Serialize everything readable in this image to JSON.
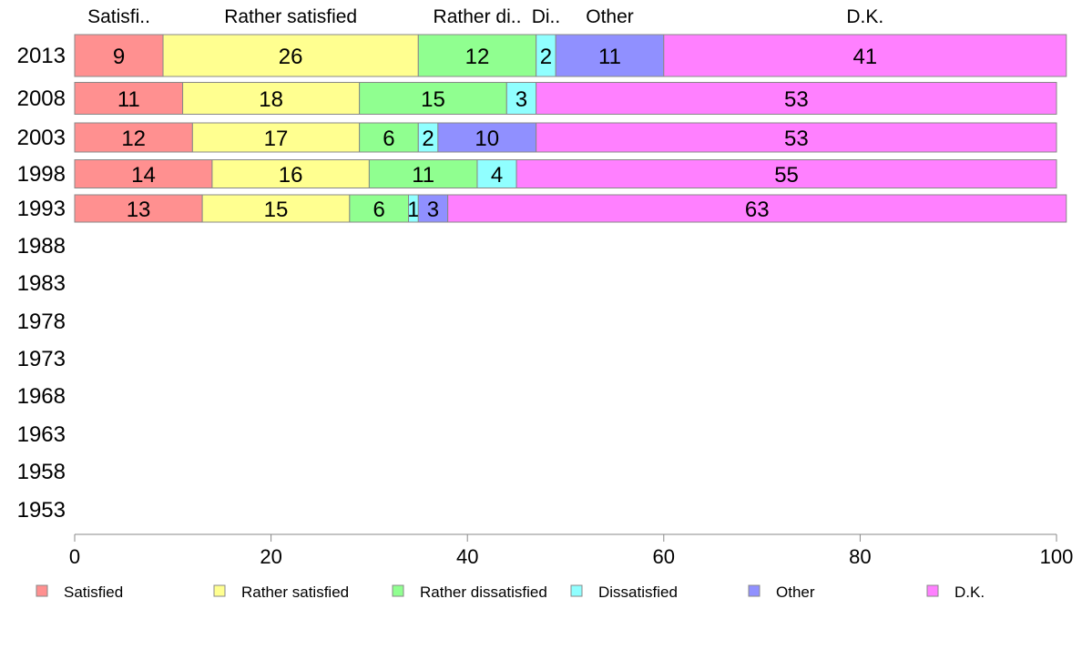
{
  "chart_data": {
    "type": "bar",
    "orientation": "horizontal",
    "stacked": true,
    "categories": [
      "2013",
      "2008",
      "2003",
      "1998",
      "1993",
      "1988",
      "1983",
      "1978",
      "1973",
      "1968",
      "1963",
      "1958",
      "1953"
    ],
    "series": [
      {
        "name": "Satisfied",
        "color": "#ff9090",
        "values": [
          9,
          11,
          12,
          14,
          13,
          null,
          null,
          null,
          null,
          null,
          null,
          null,
          null
        ]
      },
      {
        "name": "Rather satisfied",
        "color": "#ffff90",
        "values": [
          26,
          18,
          17,
          16,
          15,
          null,
          null,
          null,
          null,
          null,
          null,
          null,
          null
        ]
      },
      {
        "name": "Rather dissatisfied",
        "color": "#90ff90",
        "values": [
          12,
          15,
          6,
          11,
          6,
          null,
          null,
          null,
          null,
          null,
          null,
          null,
          null
        ]
      },
      {
        "name": "Dissatisfied",
        "color": "#90ffff",
        "values": [
          2,
          3,
          2,
          4,
          1,
          null,
          null,
          null,
          null,
          null,
          null,
          null,
          null
        ]
      },
      {
        "name": "Other",
        "color": "#9090ff",
        "values": [
          11,
          0,
          10,
          0,
          3,
          null,
          null,
          null,
          null,
          null,
          null,
          null,
          null
        ]
      },
      {
        "name": "D.K.",
        "color": "#ff80ff",
        "values": [
          41,
          53,
          53,
          55,
          63,
          null,
          null,
          null,
          null,
          null,
          null,
          null,
          null
        ]
      }
    ],
    "top_labels": [
      "Satisfi..",
      "Rather satisfied",
      "Rather di..",
      "Di..",
      "Other",
      "D.K."
    ],
    "xlim": [
      0,
      100
    ],
    "xticks": [
      "0",
      "20",
      "40",
      "60",
      "80",
      "100"
    ],
    "grid": false,
    "legend_position": "bottom"
  }
}
